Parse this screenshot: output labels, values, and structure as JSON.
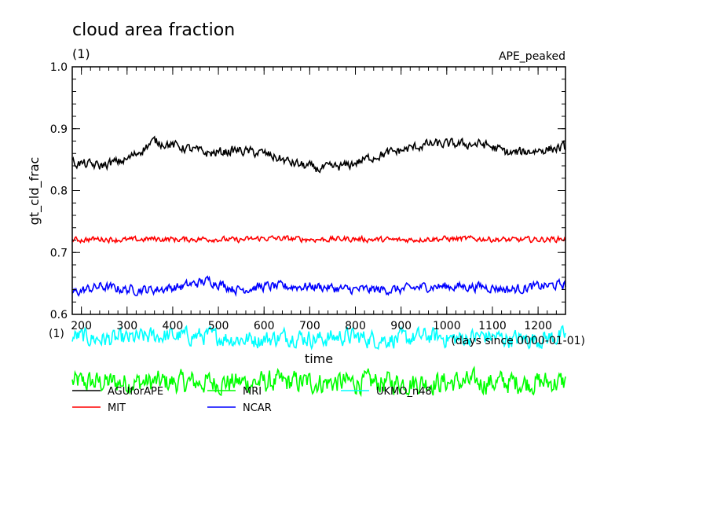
{
  "chart_data": {
    "type": "line",
    "title": "cloud area fraction",
    "subtitle": "(1)",
    "experiment": "APE_peaked",
    "ylabel": "gt_cld_frac",
    "yunits": "(1)",
    "xlabel": "time",
    "xunits": "(days since 0000-01-01)",
    "xlim": [
      180,
      1260
    ],
    "ylim": [
      0.6,
      1.0
    ],
    "xticks": [
      "200",
      "300",
      "400",
      "500",
      "600",
      "700",
      "800",
      "900",
      "1000",
      "1100",
      "1200"
    ],
    "yticks": [
      "0.6",
      "0.7",
      "0.8",
      "0.9",
      "1.0"
    ],
    "grid": false,
    "legend_position": "bottom",
    "x": [
      180,
      240,
      300,
      360,
      420,
      480,
      540,
      600,
      660,
      720,
      780,
      840,
      900,
      960,
      1020,
      1080,
      1140,
      1200,
      1260
    ],
    "series": [
      {
        "name": "AGUforAPE",
        "color": "#000000",
        "values": [
          0.845,
          0.84,
          0.85,
          0.88,
          0.87,
          0.86,
          0.865,
          0.86,
          0.845,
          0.835,
          0.84,
          0.855,
          0.865,
          0.875,
          0.875,
          0.875,
          0.86,
          0.865,
          0.87
        ]
      },
      {
        "name": "MIT",
        "color": "#ff0000",
        "values": [
          0.72,
          0.722,
          0.72,
          0.722,
          0.721,
          0.722,
          0.72,
          0.723,
          0.722,
          0.721,
          0.722,
          0.721,
          0.72,
          0.722,
          0.722,
          0.722,
          0.72,
          0.721,
          0.722
        ]
      },
      {
        "name": "NCAR",
        "color": "#0000ff",
        "values": [
          0.635,
          0.645,
          0.64,
          0.64,
          0.645,
          0.655,
          0.64,
          0.645,
          0.645,
          0.645,
          0.64,
          0.64,
          0.64,
          0.645,
          0.645,
          0.645,
          0.64,
          0.645,
          0.648
        ]
      },
      {
        "name": "MRI",
        "color": "#00ff00",
        "values": [
          0.49,
          0.49,
          0.49,
          0.49,
          0.49,
          0.49,
          0.49,
          0.49,
          0.49,
          0.49,
          0.49,
          0.49,
          0.49,
          0.49,
          0.49,
          0.49,
          0.49,
          0.49,
          0.49
        ]
      },
      {
        "name": "UKMO_n48",
        "color": "#00ffff",
        "values": [
          0.565,
          0.56,
          0.56,
          0.565,
          0.565,
          0.565,
          0.56,
          0.56,
          0.565,
          0.56,
          0.565,
          0.56,
          0.56,
          0.565,
          0.56,
          0.565,
          0.56,
          0.56,
          0.565
        ]
      }
    ]
  }
}
